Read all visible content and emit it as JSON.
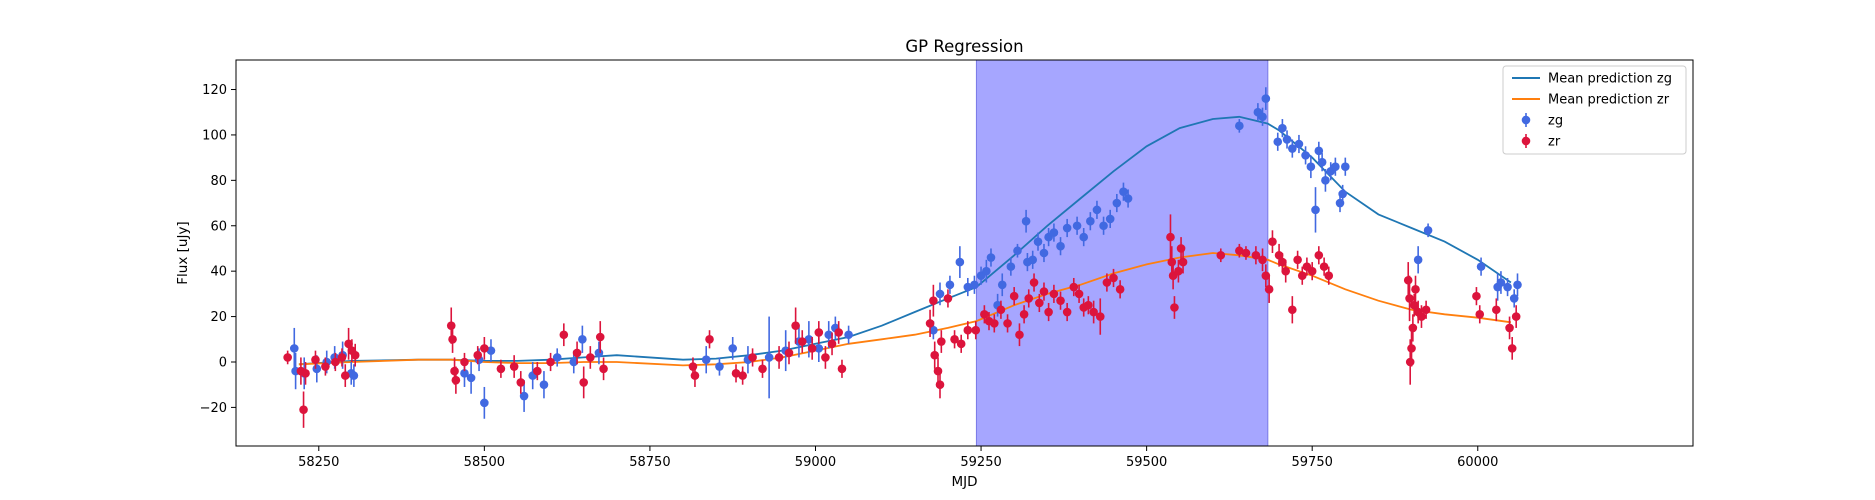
{
  "chart_data": {
    "type": "scatter",
    "title": "GP Regression",
    "xlabel": "MJD",
    "ylabel": "Flux [uJy]",
    "xlim": [
      58125,
      60325
    ],
    "ylim": [
      -37,
      133
    ],
    "x_ticks": [
      58250,
      58500,
      58750,
      59000,
      59250,
      59500,
      59750,
      60000
    ],
    "y_ticks": [
      -20,
      0,
      20,
      40,
      60,
      80,
      100,
      120
    ],
    "grid": false,
    "legend_position": "top-right",
    "shaded_region": {
      "x_start": 59243,
      "x_end": 59683,
      "color": "#a6a6ff"
    },
    "legend": [
      {
        "label": "Mean prediction zg",
        "kind": "line",
        "color": "#1f77b4"
      },
      {
        "label": "Mean prediction zr",
        "kind": "line",
        "color": "#ff7f0e"
      },
      {
        "label": "zg",
        "kind": "errorbar",
        "color": "#4169e1"
      },
      {
        "label": "zr",
        "kind": "errorbar",
        "color": "#dc143c"
      }
    ],
    "series": [
      {
        "name": "Mean prediction zg",
        "kind": "line",
        "color": "#1f77b4",
        "x": [
          58220,
          58300,
          58400,
          58450,
          58500,
          58550,
          58600,
          58650,
          58700,
          58800,
          58850,
          58900,
          58950,
          59000,
          59050,
          59100,
          59150,
          59200,
          59243,
          59300,
          59350,
          59400,
          59450,
          59500,
          59550,
          59600,
          59640,
          59683,
          59700,
          59750,
          59800,
          59850,
          59900,
          59950,
          60000,
          60050
        ],
        "y": [
          -1,
          0.5,
          1,
          1,
          0.5,
          0.5,
          1,
          2,
          3,
          1,
          1.5,
          3,
          5,
          8,
          11,
          16,
          22,
          28,
          33,
          47,
          60,
          72,
          84,
          95,
          103,
          107,
          108,
          105,
          102,
          90,
          75,
          65,
          59,
          53,
          45,
          35
        ]
      },
      {
        "name": "Mean prediction zr",
        "kind": "line",
        "color": "#ff7f0e",
        "x": [
          58220,
          58300,
          58400,
          58450,
          58500,
          58550,
          58600,
          58650,
          58700,
          58800,
          58850,
          58900,
          58950,
          59000,
          59050,
          59100,
          59150,
          59200,
          59243,
          59300,
          59350,
          59400,
          59450,
          59500,
          59550,
          59600,
          59640,
          59683,
          59700,
          59750,
          59800,
          59850,
          59900,
          59950,
          60000,
          60050
        ],
        "y": [
          -1,
          0,
          1,
          1,
          0,
          -0.5,
          -0.5,
          0,
          0,
          -1.5,
          -1,
          0,
          2,
          5,
          8,
          10,
          12,
          15,
          18,
          25,
          30,
          34,
          39,
          43,
          46,
          48,
          47,
          45,
          43,
          38,
          32,
          27,
          23,
          21,
          19.5,
          17.5
        ]
      },
      {
        "name": "zg",
        "kind": "errorbar",
        "color": "#4169e1",
        "points": [
          [
            58213,
            6,
            9
          ],
          [
            58215,
            -4,
            8
          ],
          [
            58228,
            -5,
            7
          ],
          [
            58247,
            -3,
            6
          ],
          [
            58262,
            0,
            5
          ],
          [
            58274,
            2,
            5
          ],
          [
            58286,
            3,
            6
          ],
          [
            58299,
            -5,
            5
          ],
          [
            58303,
            -6,
            5
          ],
          [
            58470,
            -5,
            6
          ],
          [
            58480,
            -7,
            7
          ],
          [
            58492,
            1,
            5
          ],
          [
            58500,
            -18,
            7
          ],
          [
            58510,
            5,
            5
          ],
          [
            58560,
            -15,
            7
          ],
          [
            58573,
            -6,
            6
          ],
          [
            58590,
            -10,
            6
          ],
          [
            58610,
            2,
            4
          ],
          [
            58635,
            0,
            5
          ],
          [
            58648,
            10,
            6
          ],
          [
            58673,
            4,
            5
          ],
          [
            58835,
            1,
            6
          ],
          [
            58855,
            -2,
            4
          ],
          [
            58875,
            6,
            5
          ],
          [
            58898,
            1,
            6
          ],
          [
            58930,
            2,
            18
          ],
          [
            58955,
            5,
            9
          ],
          [
            58975,
            9,
            7
          ],
          [
            58990,
            10,
            8
          ],
          [
            59005,
            6,
            6
          ],
          [
            59020,
            12,
            6
          ],
          [
            59030,
            15,
            5
          ],
          [
            59050,
            12,
            4
          ],
          [
            59178,
            14,
            4
          ],
          [
            59188,
            30,
            5
          ],
          [
            59203,
            34,
            4
          ],
          [
            59218,
            44,
            7
          ],
          [
            59230,
            33,
            4
          ],
          [
            59240,
            34,
            4
          ],
          [
            59250,
            38,
            4
          ],
          [
            59258,
            40,
            5
          ],
          [
            59265,
            46,
            4
          ],
          [
            59275,
            25,
            5
          ],
          [
            59282,
            34,
            5
          ],
          [
            59295,
            42,
            4
          ],
          [
            59305,
            49,
            3
          ],
          [
            59318,
            62,
            5
          ],
          [
            59320,
            44,
            4
          ],
          [
            59328,
            45,
            4
          ],
          [
            59336,
            53,
            4
          ],
          [
            59345,
            48,
            4
          ],
          [
            59352,
            55,
            4
          ],
          [
            59360,
            57,
            4
          ],
          [
            59370,
            51,
            4
          ],
          [
            59380,
            59,
            4
          ],
          [
            59395,
            60,
            4
          ],
          [
            59405,
            55,
            4
          ],
          [
            59415,
            62,
            4
          ],
          [
            59425,
            67,
            4
          ],
          [
            59435,
            60,
            4
          ],
          [
            59445,
            63,
            4
          ],
          [
            59455,
            70,
            4
          ],
          [
            59465,
            75,
            4
          ],
          [
            59472,
            72,
            4
          ],
          [
            59640,
            104,
            3
          ],
          [
            59668,
            110,
            4
          ],
          [
            59675,
            108,
            4
          ],
          [
            59680,
            116,
            5
          ],
          [
            59698,
            97,
            4
          ],
          [
            59705,
            103,
            4
          ],
          [
            59712,
            98,
            4
          ],
          [
            59720,
            94,
            4
          ],
          [
            59730,
            96,
            4
          ],
          [
            59740,
            91,
            4
          ],
          [
            59748,
            86,
            5
          ],
          [
            59755,
            67,
            10
          ],
          [
            59760,
            93,
            4
          ],
          [
            59765,
            88,
            4
          ],
          [
            59770,
            80,
            5
          ],
          [
            59778,
            84,
            4
          ],
          [
            59785,
            86,
            4
          ],
          [
            59792,
            70,
            4
          ],
          [
            59796,
            74,
            4
          ],
          [
            59800,
            86,
            4
          ],
          [
            59910,
            45,
            6
          ],
          [
            59925,
            58,
            3
          ],
          [
            60005,
            42,
            4
          ],
          [
            60030,
            33,
            6
          ],
          [
            60035,
            35,
            5
          ],
          [
            60045,
            33,
            4
          ],
          [
            60055,
            28,
            4
          ],
          [
            60060,
            34,
            5
          ]
        ]
      },
      {
        "name": "zr",
        "kind": "errorbar",
        "color": "#dc143c",
        "points": [
          [
            58203,
            2,
            3
          ],
          [
            58223,
            -4,
            6
          ],
          [
            58227,
            -21,
            8
          ],
          [
            58230,
            -5,
            5
          ],
          [
            58245,
            1,
            4
          ],
          [
            58260,
            -2,
            4
          ],
          [
            58275,
            0,
            4
          ],
          [
            58285,
            2,
            4
          ],
          [
            58290,
            -6,
            5
          ],
          [
            58295,
            8,
            7
          ],
          [
            58300,
            5,
            5
          ],
          [
            58305,
            3,
            5
          ],
          [
            58450,
            16,
            8
          ],
          [
            58452,
            10,
            6
          ],
          [
            58455,
            -4,
            6
          ],
          [
            58457,
            -8,
            6
          ],
          [
            58470,
            0,
            4
          ],
          [
            58490,
            3,
            4
          ],
          [
            58500,
            6,
            5
          ],
          [
            58525,
            -3,
            4
          ],
          [
            58545,
            -2,
            5
          ],
          [
            58555,
            -9,
            5
          ],
          [
            58580,
            -4,
            4
          ],
          [
            58600,
            0,
            4
          ],
          [
            58620,
            12,
            5
          ],
          [
            58640,
            4,
            5
          ],
          [
            58650,
            -9,
            7
          ],
          [
            58660,
            2,
            5
          ],
          [
            58675,
            11,
            7
          ],
          [
            58680,
            -3,
            5
          ],
          [
            58815,
            -2,
            4
          ],
          [
            58818,
            -6,
            5
          ],
          [
            58840,
            10,
            4
          ],
          [
            58880,
            -5,
            4
          ],
          [
            58890,
            -6,
            4
          ],
          [
            58905,
            2,
            4
          ],
          [
            58920,
            -3,
            4
          ],
          [
            58945,
            2,
            5
          ],
          [
            58960,
            4,
            5
          ],
          [
            58970,
            16,
            8
          ],
          [
            58980,
            9,
            5
          ],
          [
            58995,
            6,
            5
          ],
          [
            59005,
            13,
            5
          ],
          [
            59015,
            2,
            5
          ],
          [
            59025,
            8,
            5
          ],
          [
            59035,
            13,
            5
          ],
          [
            59040,
            -3,
            4
          ],
          [
            59173,
            17,
            6
          ],
          [
            59178,
            27,
            7
          ],
          [
            59180,
            3,
            6
          ],
          [
            59185,
            -4,
            6
          ],
          [
            59188,
            -10,
            6
          ],
          [
            59190,
            9,
            5
          ],
          [
            59200,
            28,
            4
          ],
          [
            59210,
            10,
            4
          ],
          [
            59220,
            8,
            4
          ],
          [
            59230,
            14,
            4
          ],
          [
            59242,
            14,
            4
          ],
          [
            59255,
            21,
            4
          ],
          [
            59262,
            18,
            4
          ],
          [
            59270,
            17,
            4
          ],
          [
            59280,
            23,
            4
          ],
          [
            59290,
            17,
            4
          ],
          [
            59300,
            29,
            4
          ],
          [
            59308,
            12,
            5
          ],
          [
            59315,
            21,
            4
          ],
          [
            59322,
            28,
            4
          ],
          [
            59330,
            35,
            4
          ],
          [
            59338,
            26,
            4
          ],
          [
            59345,
            31,
            4
          ],
          [
            59352,
            22,
            4
          ],
          [
            59360,
            30,
            4
          ],
          [
            59370,
            27,
            4
          ],
          [
            59380,
            22,
            4
          ],
          [
            59390,
            33,
            4
          ],
          [
            59398,
            30,
            4
          ],
          [
            59405,
            24,
            4
          ],
          [
            59412,
            25,
            4
          ],
          [
            59420,
            22,
            5
          ],
          [
            59430,
            20,
            8
          ],
          [
            59440,
            35,
            4
          ],
          [
            59450,
            37,
            4
          ],
          [
            59460,
            32,
            4
          ],
          [
            59536,
            55,
            10
          ],
          [
            59538,
            44,
            7
          ],
          [
            59540,
            38,
            6
          ],
          [
            59542,
            24,
            5
          ],
          [
            59548,
            40,
            5
          ],
          [
            59552,
            50,
            5
          ],
          [
            59555,
            44,
            5
          ],
          [
            59612,
            47,
            3
          ],
          [
            59640,
            49,
            3
          ],
          [
            59650,
            48,
            3
          ],
          [
            59665,
            47,
            4
          ],
          [
            59675,
            45,
            5
          ],
          [
            59680,
            38,
            5
          ],
          [
            59685,
            32,
            6
          ],
          [
            59690,
            53,
            5
          ],
          [
            59700,
            47,
            5
          ],
          [
            59705,
            44,
            4
          ],
          [
            59710,
            40,
            5
          ],
          [
            59720,
            23,
            6
          ],
          [
            59728,
            45,
            4
          ],
          [
            59735,
            38,
            4
          ],
          [
            59742,
            42,
            4
          ],
          [
            59750,
            40,
            4
          ],
          [
            59760,
            47,
            4
          ],
          [
            59768,
            42,
            4
          ],
          [
            59775,
            38,
            4
          ],
          [
            59895,
            36,
            8
          ],
          [
            59897,
            28,
            10
          ],
          [
            59898,
            0,
            10
          ],
          [
            59900,
            6,
            8
          ],
          [
            59902,
            15,
            6
          ],
          [
            59904,
            25,
            5
          ],
          [
            59906,
            32,
            6
          ],
          [
            59910,
            22,
            5
          ],
          [
            59915,
            20,
            5
          ],
          [
            59922,
            23,
            4
          ],
          [
            59998,
            29,
            4
          ],
          [
            60003,
            21,
            4
          ],
          [
            60028,
            23,
            5
          ],
          [
            60048,
            15,
            5
          ],
          [
            60052,
            6,
            5
          ],
          [
            60058,
            20,
            5
          ]
        ]
      }
    ]
  }
}
